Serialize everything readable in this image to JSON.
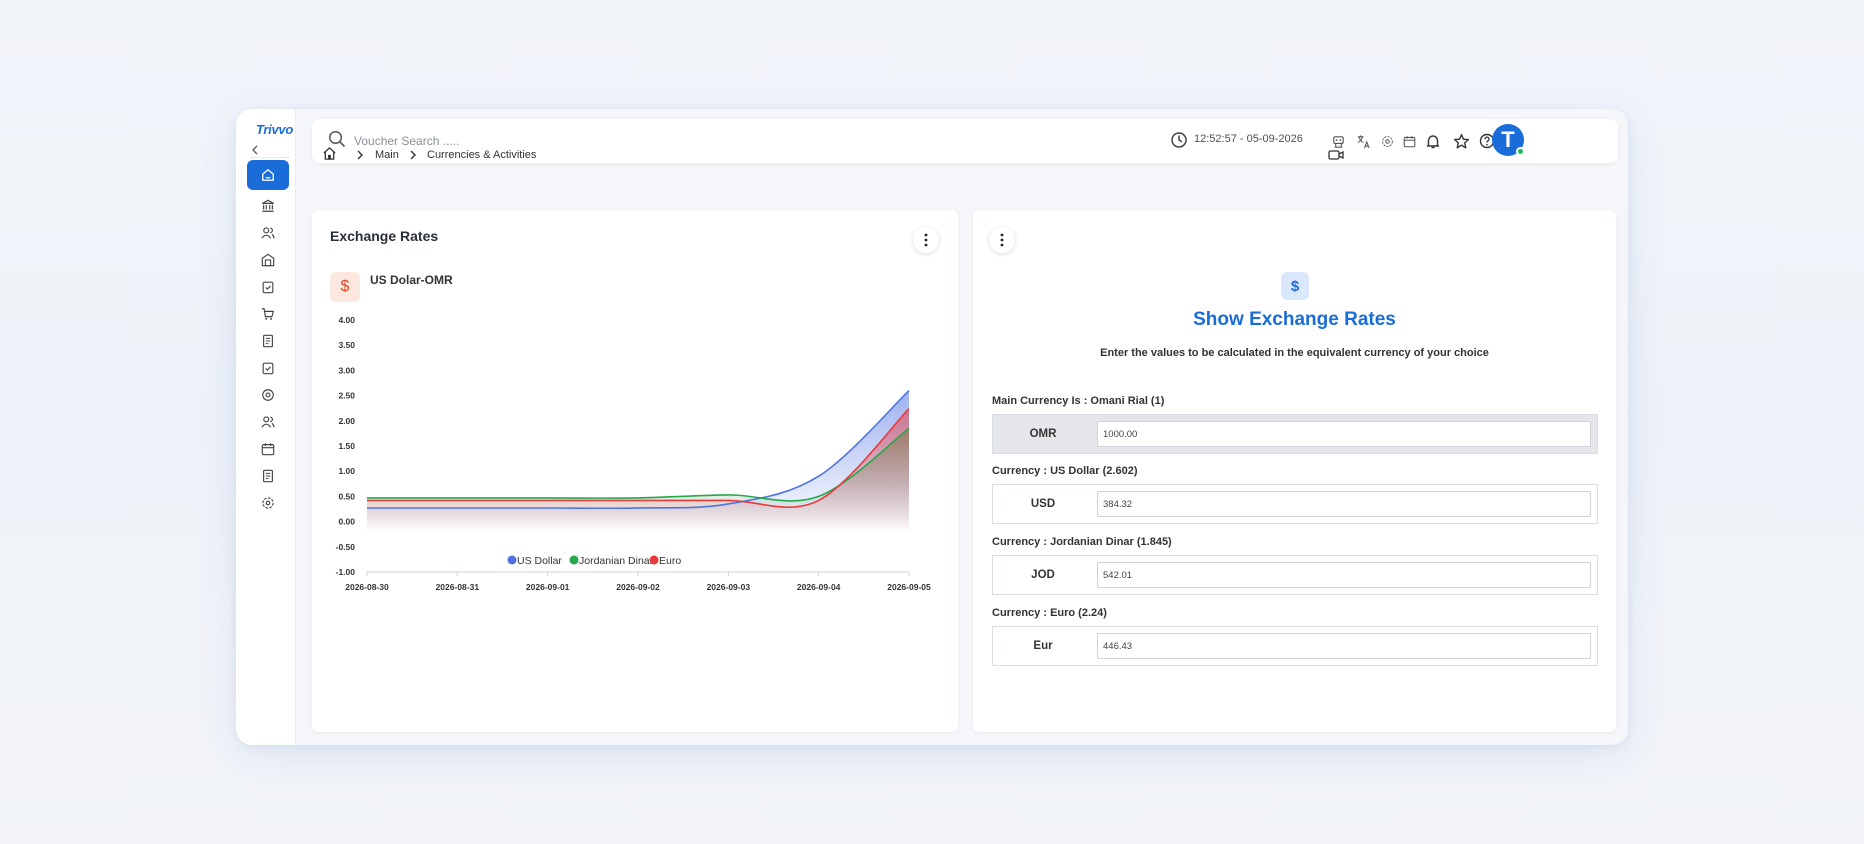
{
  "app": {
    "logo": "Trivvo"
  },
  "search": {
    "placeholder": "Voucher Search ....."
  },
  "header": {
    "datetime": "12:52:57 - 05-09-2026",
    "avatar_letter": "T"
  },
  "breadcrumb": {
    "items": [
      "Main",
      "Currencies & Activities"
    ]
  },
  "left_card": {
    "title": "Exchange Rates",
    "pair_icon": "$",
    "pair_label": "US Dolar-OMR"
  },
  "chart_data": {
    "type": "area",
    "title": "",
    "xlabel": "",
    "ylabel": "",
    "x": [
      "2026-08-30",
      "2026-08-31",
      "2026-09-01",
      "2026-09-02",
      "2026-09-03",
      "2026-09-04",
      "2026-09-05"
    ],
    "yticks": [
      "4.00",
      "3.50",
      "3.00",
      "2.50",
      "2.00",
      "1.50",
      "1.00",
      "0.50",
      "0.00",
      "-0.50",
      "-1.00"
    ],
    "ylim": [
      -1,
      4
    ],
    "legend_position": "bottom",
    "grid": false,
    "series": [
      {
        "name": "US Dollar",
        "color": "#4f73e3",
        "values": [
          0.27,
          0.27,
          0.27,
          0.27,
          0.35,
          0.9,
          2.6
        ]
      },
      {
        "name": "Jordanian Dinar",
        "color": "#25a84a",
        "values": [
          0.47,
          0.47,
          0.47,
          0.47,
          0.53,
          0.5,
          1.85
        ]
      },
      {
        "name": "Euro",
        "color": "#e83a3a",
        "values": [
          0.42,
          0.42,
          0.42,
          0.42,
          0.42,
          0.42,
          2.24
        ]
      }
    ]
  },
  "right_card": {
    "icon": "$",
    "title": "Show Exchange Rates",
    "subtitle": "Enter the values to be calculated in the equivalent currency of your choice",
    "currencies": [
      {
        "label": "Main Currency Is : Omani Rial (1)",
        "code": "OMR",
        "value": "1000.00"
      },
      {
        "label": "Currency : US Dollar (2.602)",
        "code": "USD",
        "value": "384.32"
      },
      {
        "label": "Currency : Jordanian Dinar (1.845)",
        "code": "JOD",
        "value": "542.01"
      },
      {
        "label": "Currency : Euro (2.24)",
        "code": "Eur",
        "value": "446.43"
      }
    ]
  }
}
